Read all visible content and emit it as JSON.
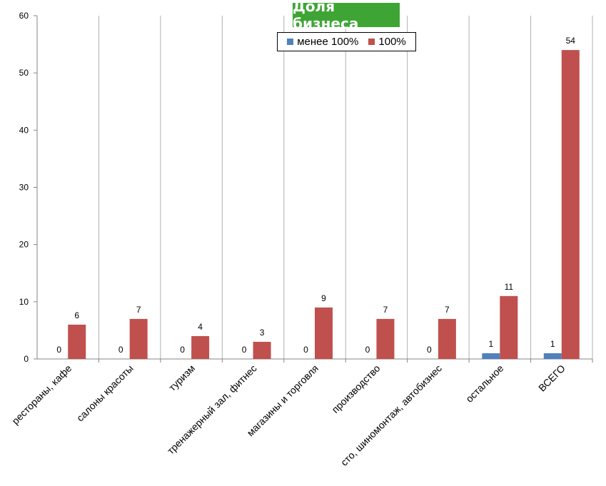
{
  "chart_data": {
    "type": "bar",
    "title": "Доля бизнеса",
    "categories": [
      "рестораны, кафе",
      "салоны красоты",
      "туризм",
      "тренажерный зал, фитнес",
      "магазины и торговля",
      "производство",
      "сто, шиномонтаж, автобизнес",
      "остальное",
      "ВСЕГО"
    ],
    "series": [
      {
        "name": "менее 100%",
        "color": "#4f81bd",
        "values": [
          0,
          0,
          0,
          0,
          0,
          0,
          0,
          1,
          1
        ]
      },
      {
        "name": "100%",
        "color": "#c0504d",
        "values": [
          6,
          7,
          4,
          3,
          9,
          7,
          7,
          11,
          54
        ]
      }
    ],
    "ylim": [
      0,
      60
    ],
    "yticks": [
      0,
      10,
      20,
      30,
      40,
      50,
      60
    ],
    "xlabel": "",
    "ylabel": "",
    "grid": "vertical category separators",
    "legend": "top-center"
  }
}
